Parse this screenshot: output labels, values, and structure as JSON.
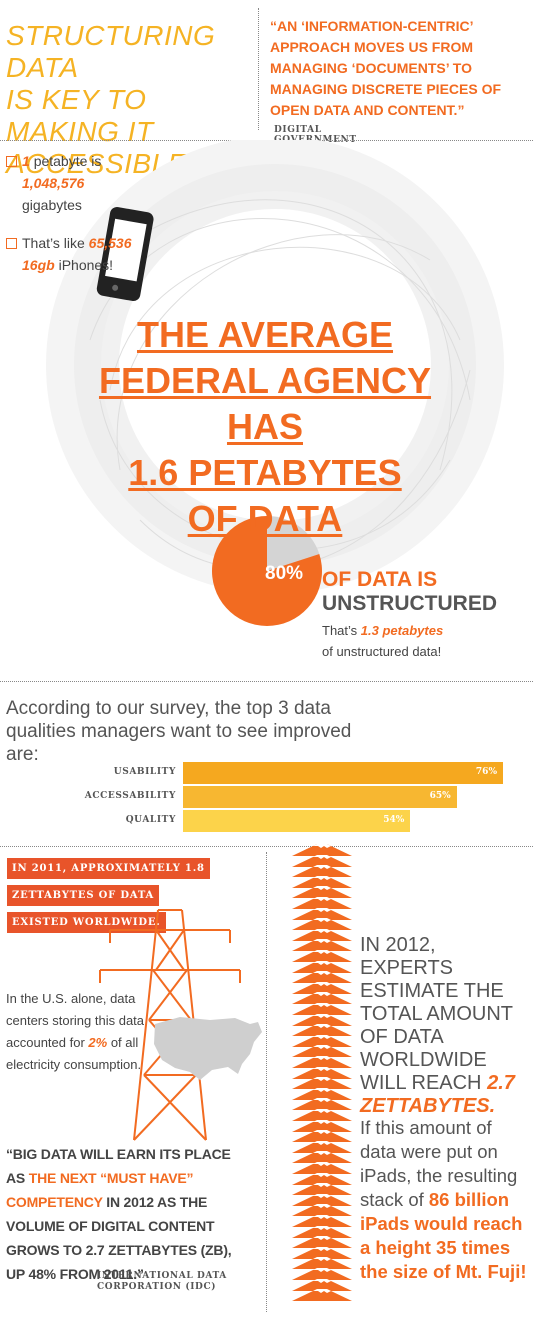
{
  "header": {
    "title_lines": [
      "STRUCTURING DATA",
      "IS KEY TO MAKING IT",
      "ACCESSIBLE"
    ],
    "quote": "“AN ‘INFORMATION-CENTRIC’ APPROACH MOVES US FROM MANAGING ‘DOCUMENTS’ TO MANAGING DISCRETE PIECES OF OPEN DATA AND CONTENT.”",
    "quote_source": "DIGITAL GOVERNMENT STRATEGY"
  },
  "facts": {
    "petabyte_num": "1",
    "petabyte_text": "petabyte is",
    "gigabytes_num": "1,048,576",
    "gigabytes_text": "gigabytes",
    "iphones_pre": "That’s like",
    "iphones_num": "65,536",
    "iphones_gb": "16gb",
    "iphones_text": "iPhones!"
  },
  "headline": {
    "lines": [
      "THE AVERAGE",
      "FEDERAL AGENCY HAS",
      "1.6 PETABYTES",
      "OF DATA"
    ]
  },
  "unstructured": {
    "percent": "80%",
    "label_part1": "OF DATA IS",
    "label_part2": "UNSTRUCTURED",
    "sub_pre": "That’s",
    "sub_value": "1.3 petabytes",
    "sub_post": "of unstructured data!"
  },
  "survey": {
    "intro": "According to our survey, the top 3 data qualities managers want to see improved are:"
  },
  "chart_data": {
    "type": "bar",
    "categories": [
      "USABILITY",
      "ACCESSABILITY",
      "QUALITY"
    ],
    "values": [
      76,
      65,
      54
    ],
    "value_labels": [
      "76%",
      "65%",
      "54%"
    ],
    "colors": [
      "#f5a81f",
      "#f7b731",
      "#fcd34a"
    ],
    "pie": {
      "values": [
        80,
        20
      ],
      "colors": [
        "#f26b21",
        "#d4d4d4"
      ]
    }
  },
  "lower_left": {
    "fact_2011": "IN 2011, APPROXIMATELY 1.8 ZETTABYTES OF DATA EXISTED WORLDWIDE.",
    "us_alone_pre": "In the U.S. alone, data centers storing this data accounted for",
    "us_alone_pct": "2%",
    "us_alone_post": "of all electricity consumption.",
    "quote_part1": "“BIG DATA WILL EARN ITS PLACE AS",
    "quote_highlight": "THE NEXT “MUST HAVE” COMPETENCY",
    "quote_part2": "IN 2012 AS THE VOLUME OF DIGITAL CONTENT GROWS TO 2.7 ZETTABYTES (ZB), UP 48% FROM 2011.”",
    "quote_source": "INTERNATIONAL DATA CORPORATION (IDC)"
  },
  "lower_right": {
    "text_2012": "IN 2012, EXPERTS ESTIMATE THE TOTAL AMOUNT OF DATA WORLDWIDE WILL REACH",
    "value_2012": "2.7 ZETTABYTES.",
    "ipads_pre": "If this amount of data were put on iPads, the resulting stack of",
    "ipads_highlight": "86 billion iPads would reach a height 35 times the size of Mt. Fuji!"
  },
  "icons": {
    "phone": "smartphone-icon",
    "tower": "power-tower-icon",
    "map": "usa-map-icon",
    "fuji": "mount-fuji-icon"
  },
  "colors": {
    "orange": "#f26b21",
    "yellow": "#f5b324",
    "gray_text": "#555555"
  }
}
